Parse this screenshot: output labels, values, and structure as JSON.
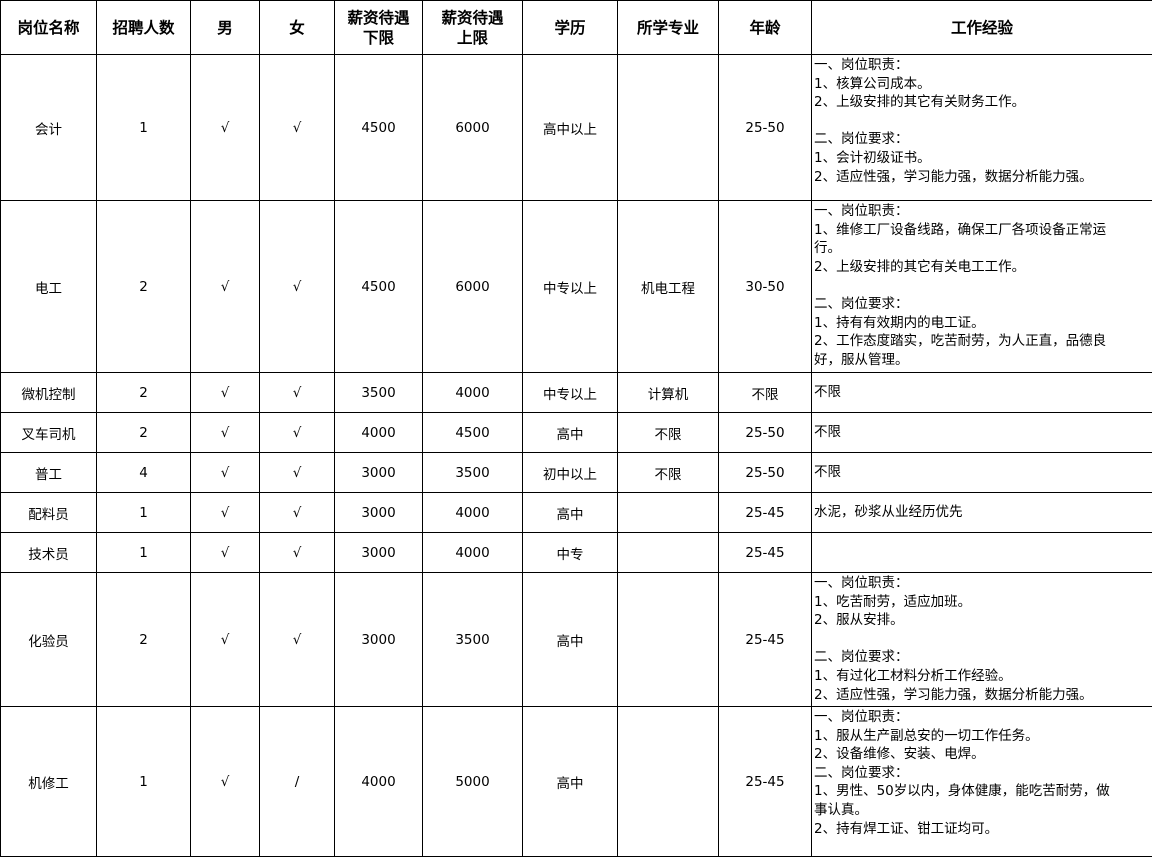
{
  "headers": [
    "岗位名称",
    "招聘人数",
    "男",
    "女",
    "薪资待遇\n下限",
    "薪资待遇\n上限",
    "学历",
    "所学专业",
    "年龄",
    "工作经验"
  ],
  "rows": [
    {
      "position": "会计",
      "count": "1",
      "male": "√",
      "female": "√",
      "salary_min": "4500",
      "salary_max": "6000",
      "education": "高中以上",
      "major": "",
      "age": "25-50",
      "experience": "一、岗位职责：\n1、核算公司成本。\n2、上级安排的其它有关财务工作。\n\n二、岗位要求：\n1、会计初级证书。\n2、适应性强，学习能力强，数据分析能力强。"
    },
    {
      "position": "电工",
      "count": "2",
      "male": "√",
      "female": "√",
      "salary_min": "4500",
      "salary_max": "6000",
      "education": "中专以上",
      "major": "机电工程",
      "age": "30-50",
      "experience": "一、岗位职责：\n1、维修工厂设备线路，确保工厂各项设备正常运\n行。\n2、上级安排的其它有关电工工作。\n\n二、岗位要求：\n1、持有有效期内的电工证。\n2、工作态度踏实，吃苦耐劳，为人正直，品德良\n好，服从管理。"
    },
    {
      "position": "微机控制",
      "count": "2",
      "male": "√",
      "female": "√",
      "salary_min": "3500",
      "salary_max": "4000",
      "education": "中专以上",
      "major": "计算机",
      "age": "不限",
      "experience": "不限"
    },
    {
      "position": "叉车司机",
      "count": "2",
      "male": "√",
      "female": "√",
      "salary_min": "4000",
      "salary_max": "4500",
      "education": "高中",
      "major": "不限",
      "age": "25-50",
      "experience": "不限"
    },
    {
      "position": "普工",
      "count": "4",
      "male": "√",
      "female": "√",
      "salary_min": "3000",
      "salary_max": "3500",
      "education": "初中以上",
      "major": "不限",
      "age": "25-50",
      "experience": "不限"
    },
    {
      "position": "配料员",
      "count": "1",
      "male": "√",
      "female": "√",
      "salary_min": "3000",
      "salary_max": "4000",
      "education": "高中",
      "major": "",
      "age": "25-45",
      "experience": "水泥，砂浆从业经历优先"
    },
    {
      "position": "技术员",
      "count": "1",
      "male": "√",
      "female": "√",
      "salary_min": "3000",
      "salary_max": "4000",
      "education": "中专",
      "major": "",
      "age": "25-45",
      "experience": ""
    },
    {
      "position": "化验员",
      "count": "2",
      "male": "√",
      "female": "√",
      "salary_min": "3000",
      "salary_max": "3500",
      "education": "高中",
      "major": "",
      "age": "25-45",
      "experience": "一、岗位职责：\n1、吃苦耐劳，适应加班。\n2、服从安排。\n\n二、岗位要求：\n1、有过化工材料分析工作经验。\n2、适应性强，学习能力强，数据分析能力强。"
    },
    {
      "position": "机修工",
      "count": "1",
      "male": "√",
      "female": "/",
      "salary_min": "4000",
      "salary_max": "5000",
      "education": "高中",
      "major": "",
      "age": "25-45",
      "experience": "一、岗位职责：\n1、服从生产副总安的一切工作任务。\n2、设备维修、安装、电焊。\n二、岗位要求：\n1、男性、50岁以内，身体健康，能吃苦耐劳，做\n事认真。\n2、持有焊工证、钳工证均可。"
    }
  ]
}
